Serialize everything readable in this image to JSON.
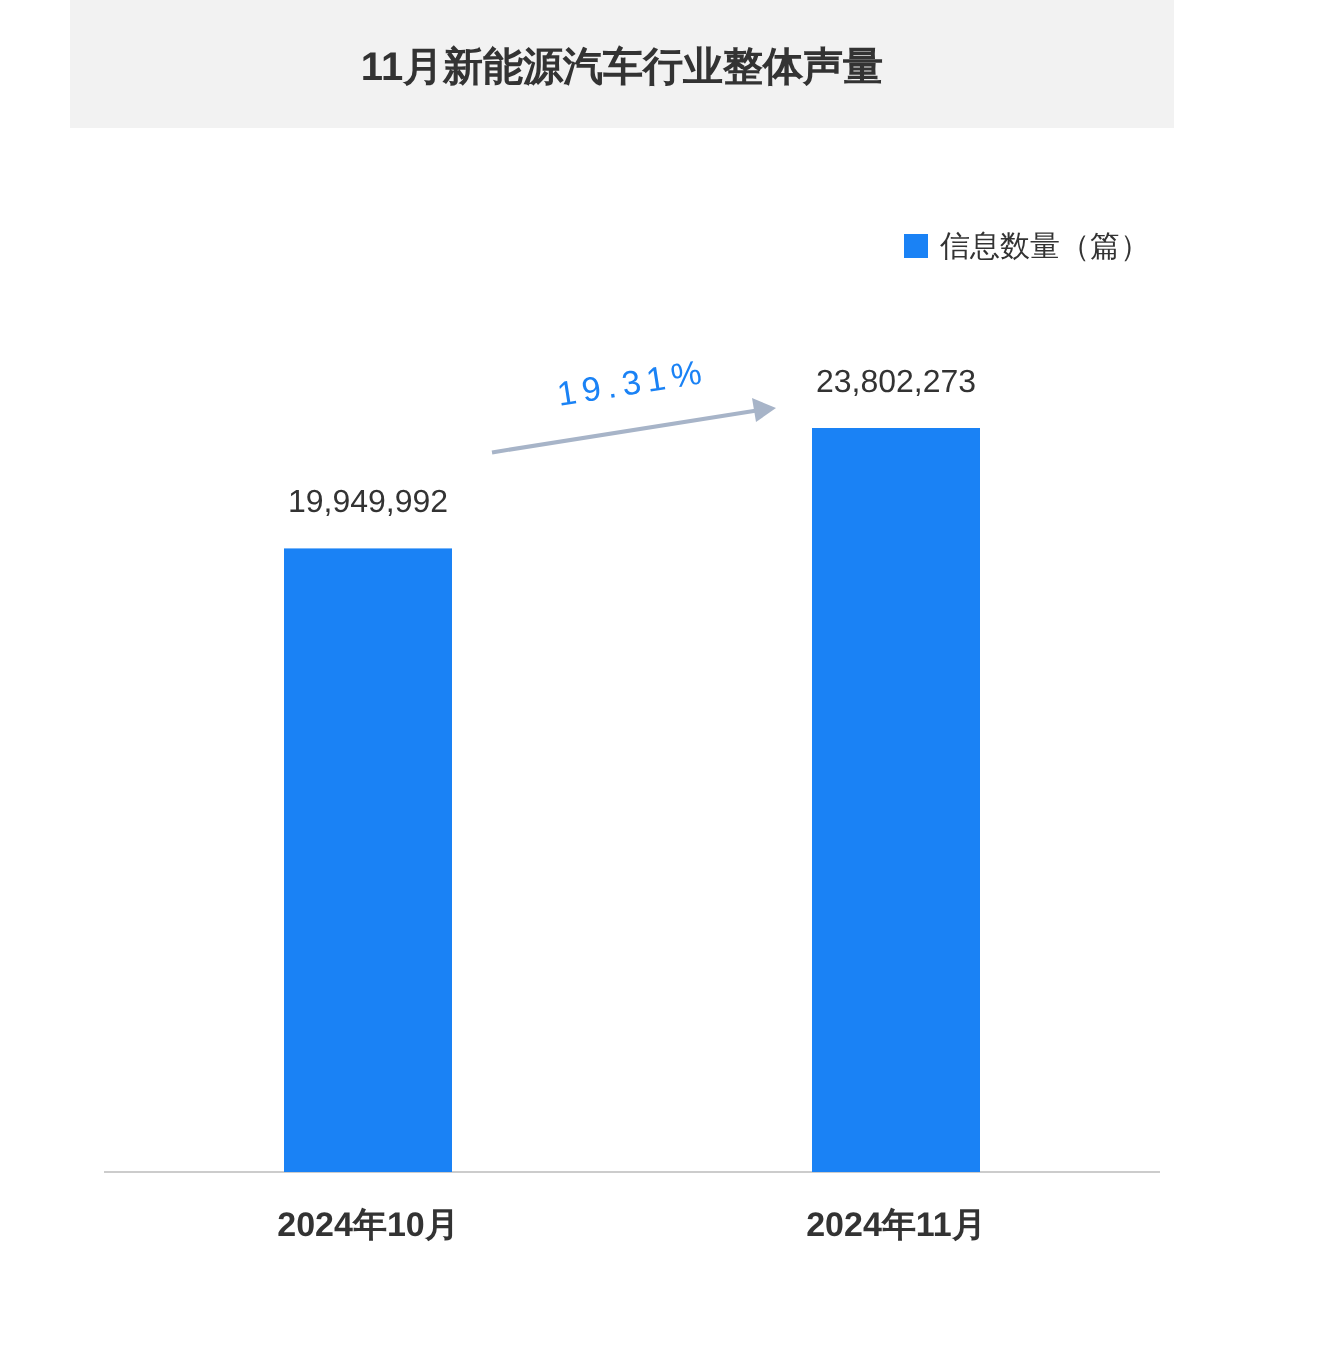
{
  "chart_data": {
    "type": "bar",
    "title": "11月新能源汽车行业整体声量",
    "categories": [
      "2024年10月",
      "2024年11月"
    ],
    "series": [
      {
        "name": "信息数量（篇）",
        "color": "#1a82f5",
        "values": [
          19949992,
          23802273
        ],
        "value_labels": [
          "19,949,992",
          "23,802,273"
        ]
      }
    ],
    "legend": "top right",
    "annotations": [
      "19.31%"
    ]
  }
}
